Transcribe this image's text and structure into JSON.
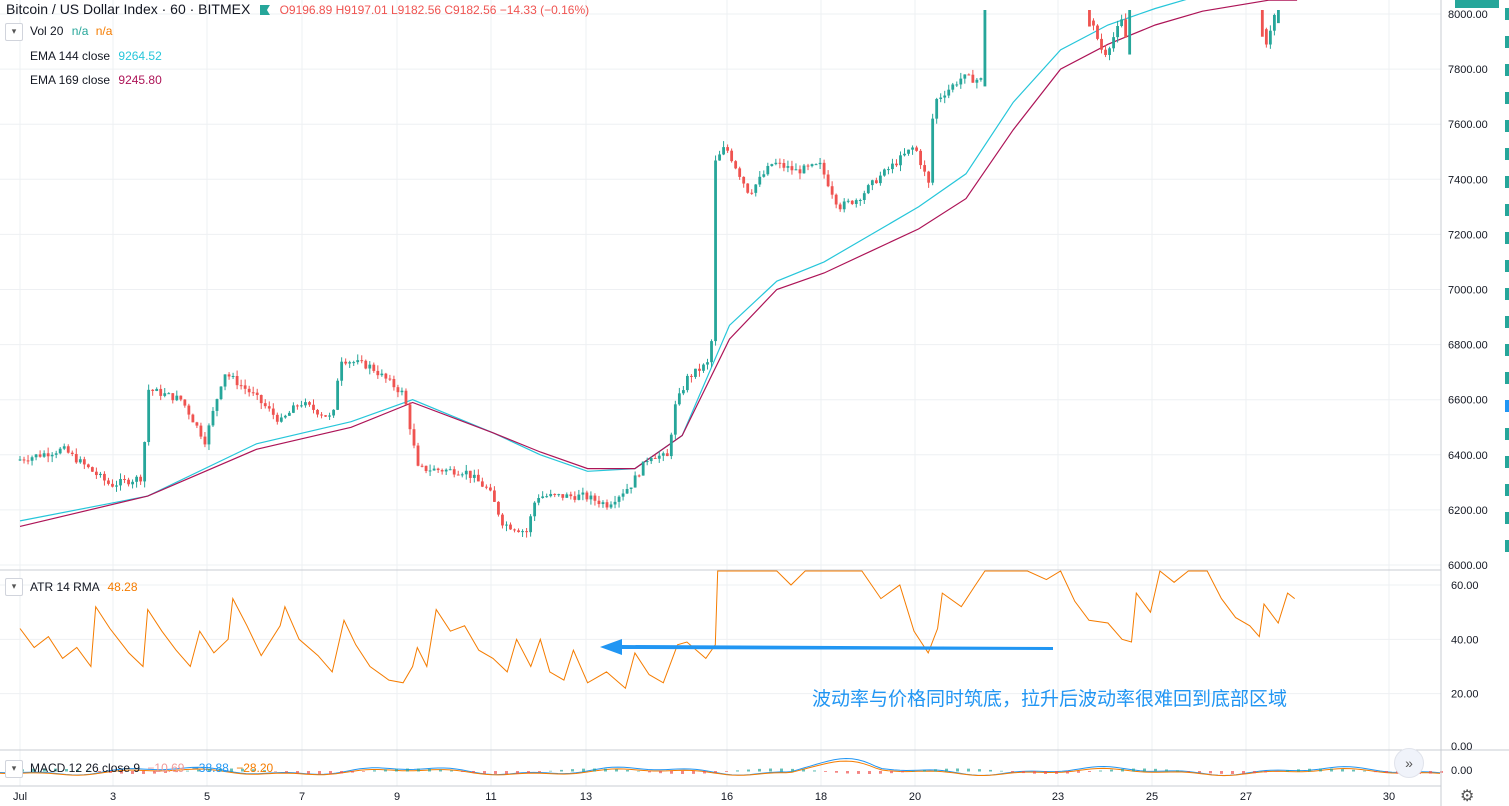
{
  "header": {
    "symbol": "Bitcoin / US Dollar Index · 60 · BITMEX",
    "ohlc": "O9196.89 H9197.01 L9182.56 C9182.56 −14.33 (−0.16%)",
    "vol_label": "Vol 20",
    "vol_v1": "n/a",
    "vol_v2": "n/a",
    "ema1_label": "EMA 144 close",
    "ema1_value": "9264.52",
    "ema2_label": "EMA 169 close",
    "ema2_value": "9245.80"
  },
  "atr_header": {
    "label": "ATR 14 RMA",
    "value": "48.28"
  },
  "macd_header": {
    "label": "MACD 12 26 close 9",
    "v1": "−10.69",
    "v2": "−38.88",
    "v3": "−28.20"
  },
  "annotation": "波动率与价格同时筑底，拉升后波动率很难回到底部区域",
  "icons": {
    "collapse": "chevron-down-icon",
    "scroll": "double-chevron-right-icon",
    "settings": "gear-icon",
    "flag": "flag-icon"
  },
  "colors": {
    "up": "#26a69a",
    "down": "#ef5350",
    "ema144": "#26c6da",
    "ema169": "#ad1457",
    "atr": "#f57c00",
    "annotation": "#2196f3",
    "macd": "#2196f3",
    "signal": "#f57c00"
  },
  "chart_data": [
    {
      "type": "candlestick",
      "y_ticks": [
        "6000.00",
        "6200.00",
        "6400.00",
        "6600.00",
        "6800.00",
        "7000.00",
        "7200.00",
        "7400.00",
        "7600.00",
        "7800.00",
        "8000.00"
      ],
      "x_ticks": [
        "Jul",
        "3",
        "5",
        "7",
        "9",
        "11",
        "13",
        "16",
        "18",
        "20",
        "23",
        "25",
        "27",
        "30"
      ],
      "ylim": [
        6000,
        8000
      ],
      "price_path": [
        [
          0,
          6380
        ],
        [
          1,
          6420
        ],
        [
          2,
          6290
        ],
        [
          2.7,
          6320
        ],
        [
          2.75,
          6640
        ],
        [
          3.5,
          6600
        ],
        [
          4,
          6450
        ],
        [
          4.4,
          6700
        ],
        [
          5,
          6620
        ],
        [
          5.6,
          6520
        ],
        [
          6,
          6590
        ],
        [
          6.7,
          6530
        ],
        [
          6.85,
          6750
        ],
        [
          7.5,
          6720
        ],
        [
          8.2,
          6620
        ],
        [
          8.5,
          6350
        ],
        [
          9.5,
          6340
        ],
        [
          10,
          6270
        ],
        [
          10.3,
          6150
        ],
        [
          10.8,
          6120
        ],
        [
          11,
          6250
        ],
        [
          12,
          6250
        ],
        [
          12.5,
          6220
        ],
        [
          13,
          6290
        ],
        [
          13.4,
          6400
        ],
        [
          13.8,
          6390
        ],
        [
          13.9,
          6560
        ],
        [
          14.2,
          6680
        ],
        [
          14.7,
          6740
        ],
        [
          14.75,
          7450
        ],
        [
          15,
          7520
        ],
        [
          15.5,
          7350
        ],
        [
          16,
          7460
        ],
        [
          16.5,
          7430
        ],
        [
          17,
          7450
        ],
        [
          17.4,
          7300
        ],
        [
          17.8,
          7330
        ],
        [
          18.2,
          7400
        ],
        [
          18.6,
          7460
        ],
        [
          19,
          7520
        ],
        [
          19.3,
          7380
        ],
        [
          19.4,
          7680
        ],
        [
          20,
          7770
        ],
        [
          20.4,
          7760
        ],
        [
          20.45,
          8050
        ],
        [
          22,
          8070
        ],
        [
          22.6,
          8030
        ],
        [
          23,
          7850
        ],
        [
          23.4,
          7980
        ],
        [
          23.5,
          7870
        ],
        [
          23.55,
          8100
        ],
        [
          26.2,
          8100
        ],
        [
          26.4,
          7880
        ],
        [
          26.8,
          8100
        ]
      ],
      "ema144": [
        [
          0,
          6160
        ],
        [
          2.7,
          6250
        ],
        [
          5,
          6440
        ],
        [
          7,
          6520
        ],
        [
          8.3,
          6600
        ],
        [
          10,
          6480
        ],
        [
          11,
          6400
        ],
        [
          12,
          6340
        ],
        [
          13,
          6350
        ],
        [
          14,
          6470
        ],
        [
          15,
          6870
        ],
        [
          16,
          7030
        ],
        [
          17,
          7100
        ],
        [
          18,
          7200
        ],
        [
          19,
          7300
        ],
        [
          20,
          7420
        ],
        [
          21,
          7680
        ],
        [
          22,
          7870
        ],
        [
          23,
          7960
        ],
        [
          24,
          8020
        ],
        [
          25,
          8070
        ],
        [
          26.4,
          8090
        ],
        [
          27,
          8090
        ]
      ],
      "ema169": [
        [
          0,
          6140
        ],
        [
          2.7,
          6250
        ],
        [
          5,
          6420
        ],
        [
          7,
          6500
        ],
        [
          8.3,
          6590
        ],
        [
          10,
          6480
        ],
        [
          11,
          6410
        ],
        [
          12,
          6350
        ],
        [
          13,
          6350
        ],
        [
          14,
          6470
        ],
        [
          15,
          6820
        ],
        [
          16,
          7000
        ],
        [
          17,
          7060
        ],
        [
          18,
          7140
        ],
        [
          19,
          7220
        ],
        [
          20,
          7330
        ],
        [
          21,
          7580
        ],
        [
          22,
          7800
        ],
        [
          23,
          7890
        ],
        [
          24,
          7960
        ],
        [
          25,
          8010
        ],
        [
          26.4,
          8050
        ],
        [
          27,
          8050
        ]
      ]
    },
    {
      "type": "line",
      "name": "ATR 14 RMA",
      "y_ticks": [
        "20.00",
        "40.00",
        "60.00"
      ],
      "ylim": [
        0,
        65
      ],
      "points": [
        [
          0,
          44
        ],
        [
          0.3,
          37
        ],
        [
          0.6,
          41
        ],
        [
          0.9,
          33
        ],
        [
          1.2,
          37
        ],
        [
          1.5,
          30
        ],
        [
          1.6,
          52
        ],
        [
          1.9,
          44
        ],
        [
          2.3,
          35
        ],
        [
          2.6,
          30
        ],
        [
          2.7,
          51
        ],
        [
          3,
          43
        ],
        [
          3.3,
          36
        ],
        [
          3.6,
          30
        ],
        [
          3.8,
          43
        ],
        [
          4.1,
          35
        ],
        [
          4.4,
          40
        ],
        [
          4.5,
          55
        ],
        [
          4.8,
          45
        ],
        [
          5.1,
          34
        ],
        [
          5.5,
          45
        ],
        [
          5.6,
          52
        ],
        [
          5.9,
          40
        ],
        [
          6.3,
          34
        ],
        [
          6.6,
          28
        ],
        [
          6.85,
          47
        ],
        [
          7.1,
          38
        ],
        [
          7.4,
          30
        ],
        [
          7.8,
          25
        ],
        [
          8.1,
          24
        ],
        [
          8.3,
          30
        ],
        [
          8.4,
          37
        ],
        [
          8.6,
          30
        ],
        [
          8.8,
          51
        ],
        [
          9.1,
          43
        ],
        [
          9.4,
          45
        ],
        [
          9.7,
          36
        ],
        [
          10,
          33
        ],
        [
          10.3,
          28
        ],
        [
          10.5,
          40
        ],
        [
          10.8,
          30
        ],
        [
          11,
          40
        ],
        [
          11.2,
          28
        ],
        [
          11.5,
          25
        ],
        [
          11.7,
          36
        ],
        [
          12,
          24
        ],
        [
          12.4,
          28
        ],
        [
          12.8,
          22
        ],
        [
          13,
          35
        ],
        [
          13.3,
          27
        ],
        [
          13.6,
          24
        ],
        [
          13.9,
          38
        ],
        [
          14.1,
          39
        ],
        [
          14.5,
          33
        ],
        [
          14.7,
          38
        ],
        [
          14.75,
          74
        ],
        [
          15,
          69
        ],
        [
          15.5,
          74
        ],
        [
          16,
          75
        ],
        [
          16.3,
          60
        ],
        [
          16.6,
          68
        ],
        [
          16.9,
          75
        ],
        [
          17.2,
          72
        ],
        [
          17.5,
          66
        ],
        [
          17.8,
          74
        ],
        [
          18.2,
          55
        ],
        [
          18.6,
          60
        ],
        [
          18.9,
          43
        ],
        [
          19.2,
          35
        ],
        [
          19.4,
          44
        ],
        [
          19.5,
          57
        ],
        [
          19.9,
          52
        ],
        [
          20.2,
          60
        ],
        [
          20.4,
          68
        ],
        [
          20.6,
          74
        ],
        [
          21,
          70
        ],
        [
          21.3,
          74
        ],
        [
          21.7,
          62
        ],
        [
          22,
          73
        ],
        [
          22.3,
          54
        ],
        [
          22.6,
          47
        ],
        [
          23,
          46
        ],
        [
          23.3,
          40
        ],
        [
          23.5,
          39
        ],
        [
          23.6,
          57
        ],
        [
          23.9,
          50
        ],
        [
          24.1,
          73
        ],
        [
          24.4,
          61
        ],
        [
          24.7,
          72
        ],
        [
          25.1,
          66
        ],
        [
          25.4,
          55
        ],
        [
          25.7,
          48
        ],
        [
          26,
          45
        ],
        [
          26.2,
          41
        ],
        [
          26.3,
          53
        ],
        [
          26.6,
          46
        ],
        [
          26.8,
          57
        ],
        [
          26.95,
          55
        ]
      ]
    },
    {
      "type": "line",
      "name": "MACD 12 26 close 9",
      "y_ticks": [
        "0.00",
        "0.00"
      ]
    }
  ]
}
